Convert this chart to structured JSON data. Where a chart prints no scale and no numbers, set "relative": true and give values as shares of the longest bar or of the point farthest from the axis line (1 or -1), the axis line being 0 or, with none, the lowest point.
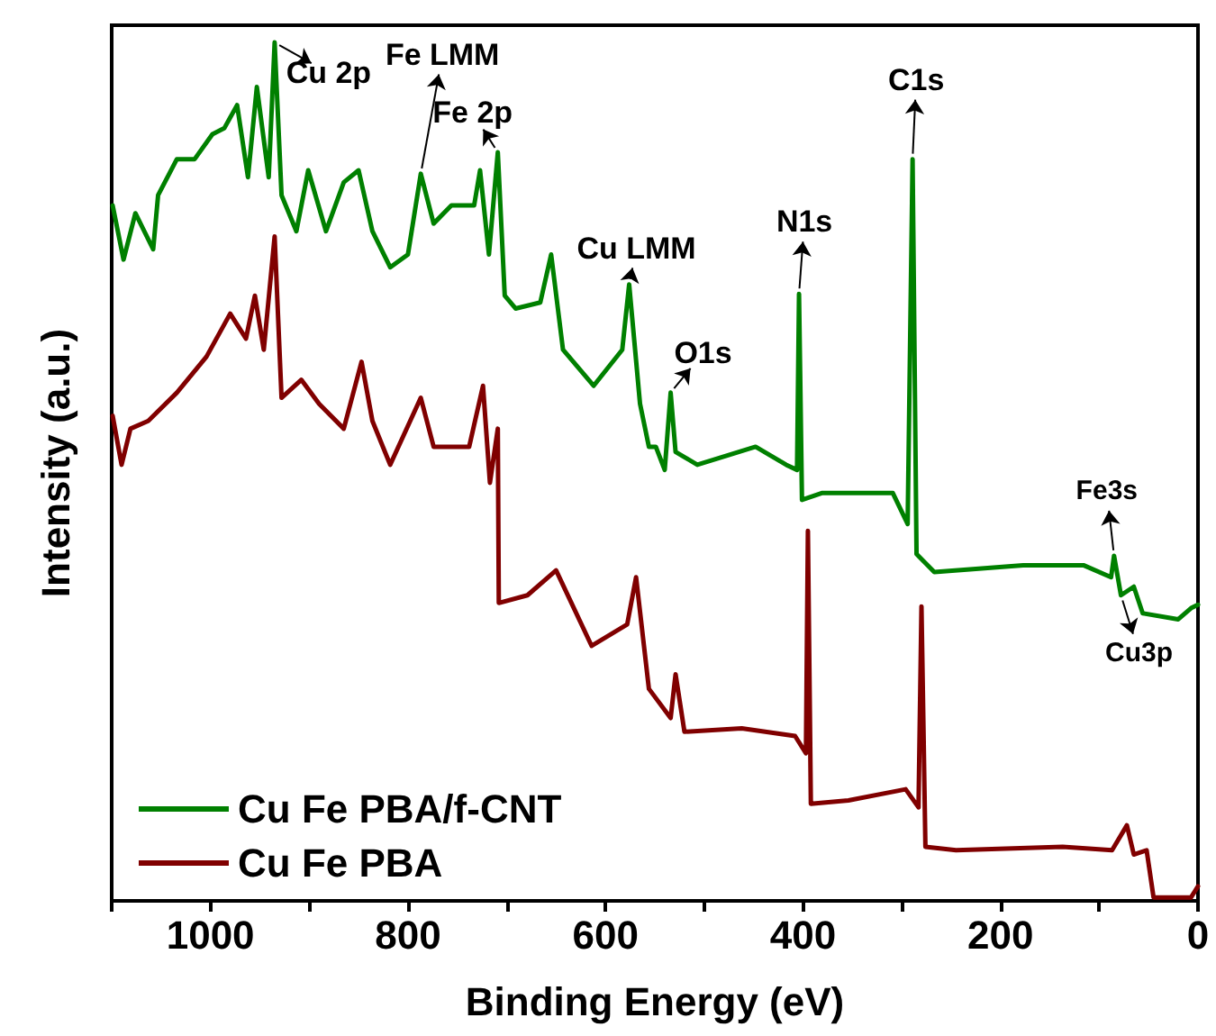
{
  "chart_data": {
    "type": "line",
    "relative": true,
    "xlabel": "Binding Energy (eV)",
    "ylabel": "Intensity (a.u.)",
    "xlim": [
      1100,
      0
    ],
    "xticks": [
      {
        "value": 1100,
        "label": null
      },
      1000,
      {
        "value": 900,
        "label": null
      },
      800,
      {
        "value": 700,
        "label": null
      },
      600,
      {
        "value": 500,
        "label": null
      },
      400,
      {
        "value": 300,
        "label": null
      },
      200,
      {
        "value": 100,
        "label": null
      },
      0
    ],
    "legend": "bottom left",
    "series": [
      {
        "name": "Cu Fe PBA/f-CNT",
        "color": "#008000",
        "x": [
          1099,
          1088,
          1076,
          1058,
          1053,
          1034,
          1016,
          998,
          986,
          973,
          962,
          953,
          941,
          935,
          928,
          913,
          901,
          883,
          865,
          850,
          836,
          818,
          800,
          787,
          774,
          756,
          733,
          727,
          718,
          709,
          702,
          691,
          666,
          655,
          643,
          612,
          583,
          576,
          565,
          556,
          549,
          540,
          534,
          529,
          507,
          448,
          417,
          406,
          404,
          401,
          381,
          345,
          309,
          294,
          289,
          285,
          267,
          177,
          116,
          88,
          85,
          78,
          65,
          56,
          20,
          7,
          0
        ],
        "values": [
          0.81,
          0.747,
          0.801,
          0.759,
          0.822,
          0.864,
          0.864,
          0.893,
          0.9,
          0.927,
          0.843,
          0.948,
          0.843,
          1.0,
          0.822,
          0.78,
          0.851,
          0.78,
          0.837,
          0.851,
          0.78,
          0.738,
          0.753,
          0.847,
          0.789,
          0.81,
          0.81,
          0.851,
          0.753,
          0.872,
          0.705,
          0.69,
          0.697,
          0.753,
          0.642,
          0.6,
          0.642,
          0.718,
          0.579,
          0.529,
          0.529,
          0.502,
          0.592,
          0.523,
          0.508,
          0.529,
          0.508,
          0.502,
          0.707,
          0.467,
          0.475,
          0.475,
          0.475,
          0.439,
          0.864,
          0.404,
          0.383,
          0.391,
          0.391,
          0.377,
          0.402,
          0.356,
          0.366,
          0.335,
          0.328,
          0.341,
          0.345
        ]
      },
      {
        "name": "Cu Fe PBA",
        "color": "#800000",
        "x": [
          1099,
          1090,
          1081,
          1063,
          1034,
          1004,
          980,
          964,
          955,
          946,
          935,
          928,
          908,
          890,
          865,
          847,
          836,
          818,
          787,
          774,
          738,
          724,
          717,
          709,
          708,
          679,
          650,
          614,
          578,
          569,
          556,
          534,
          529,
          520,
          462,
          408,
          397,
          395,
          392,
          354,
          296,
          283,
          280,
          276,
          245,
          137,
          87,
          72,
          65,
          52,
          45,
          7,
          0
        ],
        "values": [
          0.565,
          0.508,
          0.55,
          0.559,
          0.592,
          0.634,
          0.684,
          0.655,
          0.705,
          0.642,
          0.774,
          0.586,
          0.607,
          0.579,
          0.55,
          0.628,
          0.559,
          0.508,
          0.586,
          0.529,
          0.529,
          0.6,
          0.487,
          0.55,
          0.347,
          0.356,
          0.385,
          0.297,
          0.322,
          0.377,
          0.247,
          0.213,
          0.264,
          0.197,
          0.201,
          0.192,
          0.172,
          0.431,
          0.113,
          0.117,
          0.13,
          0.109,
          0.343,
          0.063,
          0.059,
          0.063,
          0.059,
          0.088,
          0.054,
          0.059,
          0.004,
          0.004,
          0.017
        ]
      }
    ],
    "annotations": [
      {
        "text": "Cu 2p",
        "x": 935,
        "y": 1.0
      },
      {
        "text": "Fe LMM",
        "x": 787,
        "y": 0.847
      },
      {
        "text": "Fe 2p",
        "x": 709,
        "y": 0.872
      },
      {
        "text": "Cu LMM",
        "x": 576,
        "y": 0.718
      },
      {
        "text": "O1s",
        "x": 534,
        "y": 0.592
      },
      {
        "text": "N1s",
        "x": 404,
        "y": 0.707
      },
      {
        "text": "C1s",
        "x": 289,
        "y": 0.864
      },
      {
        "text": "Fe3s",
        "x": 85,
        "y": 0.402
      },
      {
        "text": "Cu3p",
        "x": 78,
        "y": 0.356
      }
    ]
  }
}
